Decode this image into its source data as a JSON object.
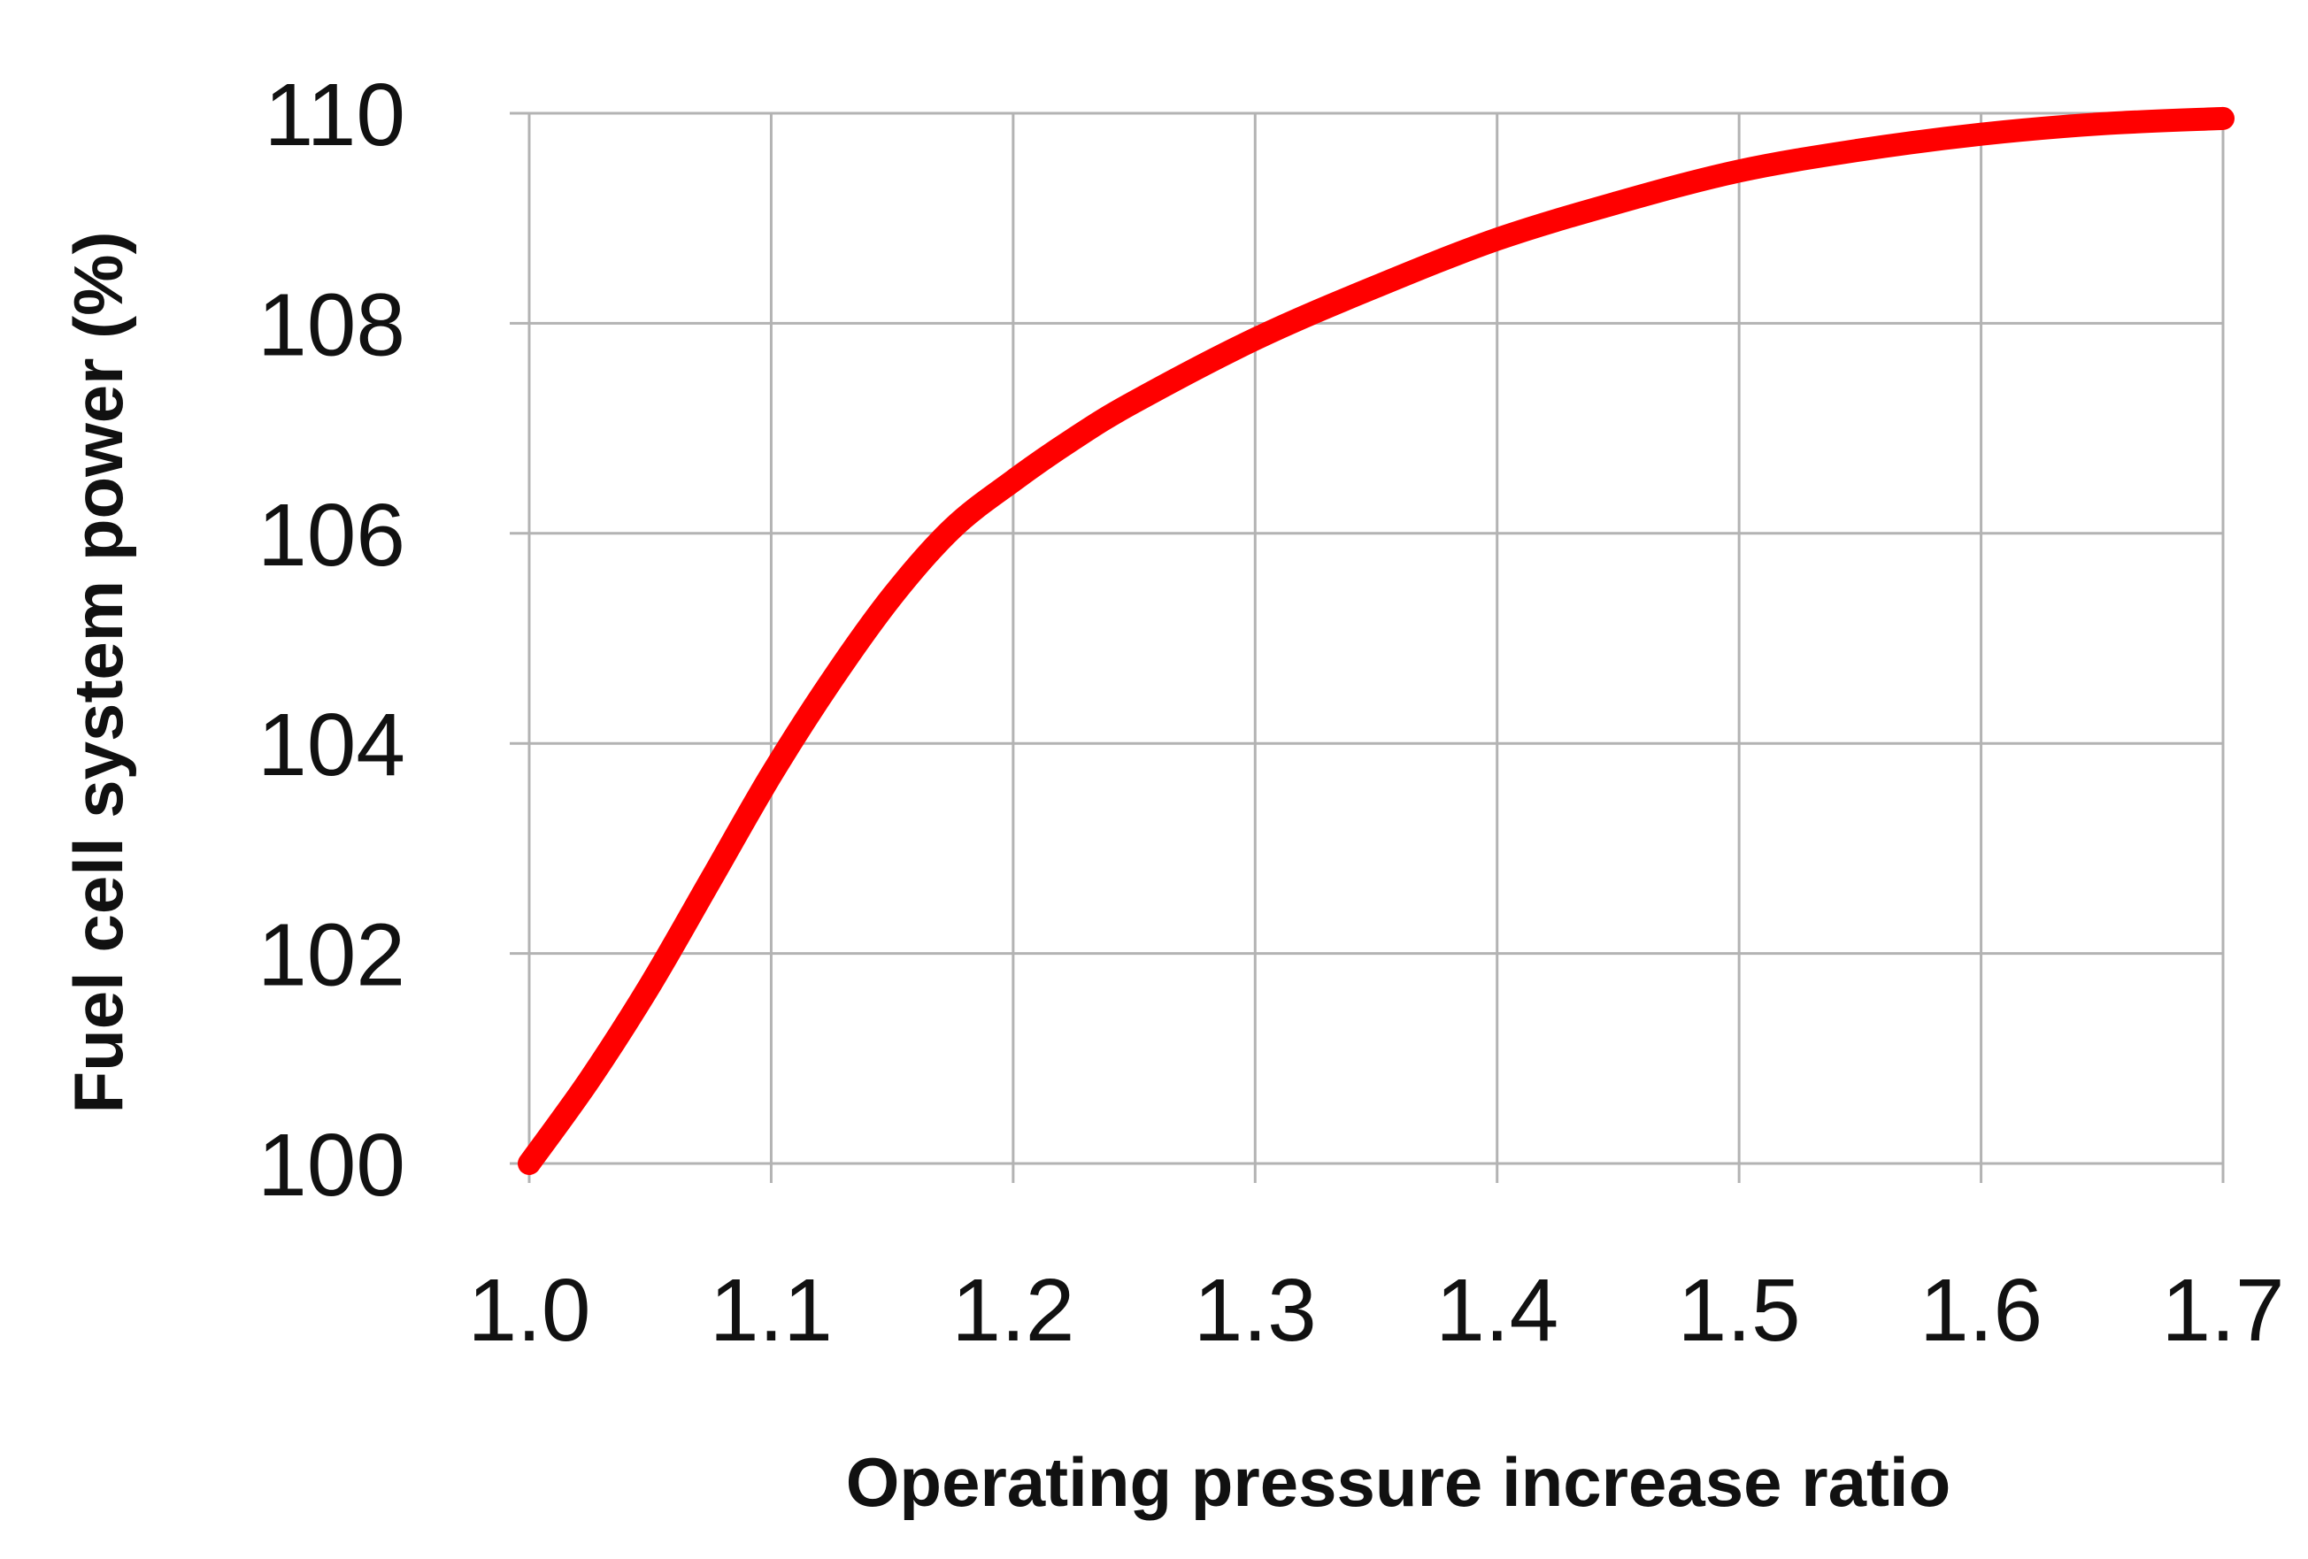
{
  "chart_data": {
    "type": "line",
    "title": "",
    "xlabel": "Operating pressure increase ratio",
    "ylabel": "Fuel cell system power (%)",
    "xlim": [
      1.0,
      1.7
    ],
    "ylim": [
      100,
      110
    ],
    "x_ticks": [
      1.0,
      1.1,
      1.2,
      1.3,
      1.4,
      1.5,
      1.6,
      1.7
    ],
    "x_tick_labels": [
      "1.0",
      "1.1",
      "1.2",
      "1.3",
      "1.4",
      "1.5",
      "1.6",
      "1.7"
    ],
    "y_ticks": [
      100,
      102,
      104,
      106,
      108,
      110
    ],
    "y_tick_labels": [
      "100",
      "102",
      "104",
      "106",
      "108",
      "110"
    ],
    "grid": true,
    "legend": "none",
    "series": [
      {
        "color": "#ff0000",
        "x": [
          1.0,
          1.025,
          1.05,
          1.075,
          1.1,
          1.125,
          1.15,
          1.175,
          1.2,
          1.225,
          1.25,
          1.3,
          1.35,
          1.4,
          1.45,
          1.5,
          1.55,
          1.6,
          1.65,
          1.7
        ],
        "y": [
          100.0,
          100.8,
          101.7,
          102.7,
          103.7,
          104.6,
          105.4,
          106.05,
          106.5,
          106.9,
          107.25,
          107.85,
          108.35,
          108.8,
          109.15,
          109.45,
          109.65,
          109.8,
          109.9,
          109.95
        ]
      }
    ]
  }
}
